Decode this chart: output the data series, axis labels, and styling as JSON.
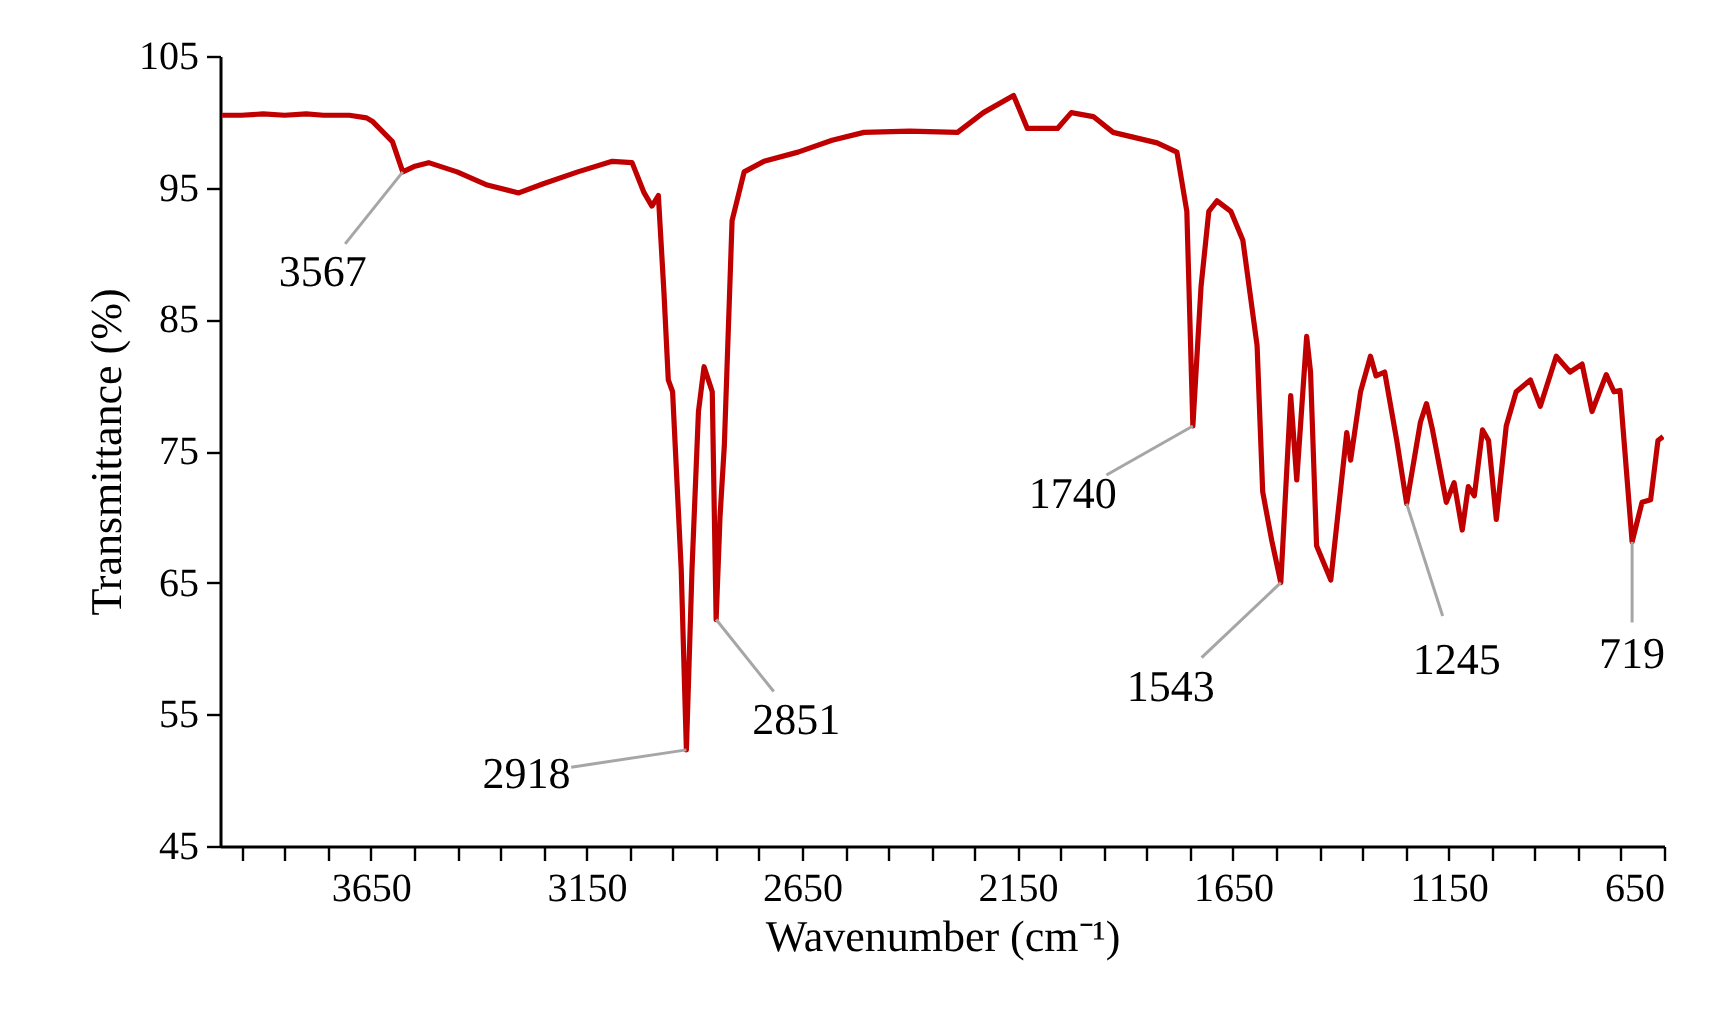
{
  "chart_data": {
    "type": "line",
    "xlabel": "Wavenumber (cm⁻¹)",
    "ylabel": "Transmittance (%)",
    "x": [
      3995,
      3950,
      3900,
      3850,
      3800,
      3760,
      3700,
      3660,
      3645,
      3600,
      3576,
      3550,
      3516,
      3450,
      3380,
      3307,
      3250,
      3170,
      3090,
      3044,
      3016,
      2998,
      2983,
      2970,
      2960,
      2950,
      2930,
      2918,
      2905,
      2890,
      2877,
      2868,
      2858,
      2849,
      2840,
      2830,
      2812,
      2784,
      2738,
      2659,
      2580,
      2506,
      2400,
      2289,
      2229,
      2159,
      2127,
      2057,
      2025,
      1974,
      1928,
      1826,
      1780,
      1757,
      1743,
      1724,
      1706,
      1687,
      1655,
      1627,
      1594,
      1581,
      1560,
      1539,
      1516,
      1502,
      1479,
      1470,
      1456,
      1423,
      1386,
      1377,
      1354,
      1331,
      1318,
      1298,
      1270,
      1247,
      1215,
      1201,
      1187,
      1155,
      1137,
      1118,
      1104,
      1090,
      1071,
      1057,
      1039,
      1016,
      993,
      960,
      937,
      900,
      868,
      840,
      817,
      784,
      766,
      752,
      724,
      701,
      681,
      664,
      652
    ],
    "series": [
      {
        "color": "#c00000",
        "values": [
          100.5,
          100.5,
          100.6,
          100.5,
          100.6,
          100.5,
          100.5,
          100.3,
          100.0,
          98.5,
          96.2,
          96.6,
          96.9,
          96.2,
          95.2,
          94.6,
          95.3,
          96.2,
          97.0,
          96.9,
          94.6,
          93.6,
          94.4,
          87.0,
          80.4,
          79.5,
          66.0,
          52.3,
          66.0,
          78.0,
          81.4,
          80.5,
          79.5,
          62.2,
          70.0,
          75.4,
          92.5,
          96.2,
          97.0,
          97.7,
          98.6,
          99.2,
          99.3,
          99.2,
          100.7,
          102.0,
          99.5,
          99.5,
          100.7,
          100.4,
          99.2,
          98.4,
          97.7,
          93.2,
          76.9,
          87.5,
          93.2,
          94.0,
          93.2,
          91.0,
          83.0,
          71.9,
          68.2,
          65.0,
          79.2,
          72.8,
          83.7,
          81.0,
          67.8,
          65.2,
          76.4,
          74.3,
          79.5,
          82.2,
          80.7,
          81.0,
          75.8,
          71.0,
          77.2,
          78.6,
          76.6,
          71.1,
          72.6,
          69.0,
          72.3,
          71.6,
          76.6,
          75.8,
          69.8,
          76.9,
          79.5,
          80.4,
          78.4,
          82.2,
          81.0,
          81.6,
          78.0,
          80.8,
          79.5,
          79.6,
          68.1,
          71.1,
          71.3,
          75.8,
          76.1
        ]
      }
    ],
    "xlim": [
      4000,
      650
    ],
    "xticks": [
      {
        "value": 3950,
        "label": null
      },
      {
        "value": 3850,
        "label": null
      },
      {
        "value": 3750,
        "label": null
      },
      3650,
      {
        "value": 3550,
        "label": null
      },
      {
        "value": 3450,
        "label": null
      },
      {
        "value": 3350,
        "label": null
      },
      {
        "value": 3250,
        "label": null
      },
      3150,
      {
        "value": 3050,
        "label": null
      },
      {
        "value": 2950,
        "label": null
      },
      {
        "value": 2850,
        "label": null
      },
      {
        "value": 2750,
        "label": null
      },
      2650,
      {
        "value": 2550,
        "label": null
      },
      {
        "value": 2450,
        "label": null
      },
      {
        "value": 2350,
        "label": null
      },
      {
        "value": 2250,
        "label": null
      },
      2150,
      {
        "value": 2050,
        "label": null
      },
      {
        "value": 1950,
        "label": null
      },
      {
        "value": 1850,
        "label": null
      },
      {
        "value": 1750,
        "label": null
      },
      1650,
      {
        "value": 1550,
        "label": null
      },
      {
        "value": 1450,
        "label": null
      },
      {
        "value": 1350,
        "label": null
      },
      {
        "value": 1250,
        "label": null
      },
      1150,
      {
        "value": 1050,
        "label": null
      },
      {
        "value": 950,
        "label": null
      },
      {
        "value": 850,
        "label": null
      },
      {
        "value": 750,
        "label": null
      },
      650
    ],
    "ylim": [
      45,
      105
    ],
    "yticks": [
      45,
      55,
      65,
      75,
      85,
      95,
      105
    ],
    "grid": false,
    "marker": "none",
    "line_style": "solid",
    "annotations": [
      {
        "text": "3567",
        "x": 3576,
        "y": 96.2
      },
      {
        "text": "2918",
        "x": 2918,
        "y": 52.3
      },
      {
        "text": "2851",
        "x": 2849,
        "y": 62.2
      },
      {
        "text": "1740",
        "x": 1743,
        "y": 76.9
      },
      {
        "text": "1543",
        "x": 1539,
        "y": 65.0
      },
      {
        "text": "1245",
        "x": 1247,
        "y": 71.0
      },
      {
        "text": "719",
        "x": 724,
        "y": 68.1
      }
    ]
  }
}
